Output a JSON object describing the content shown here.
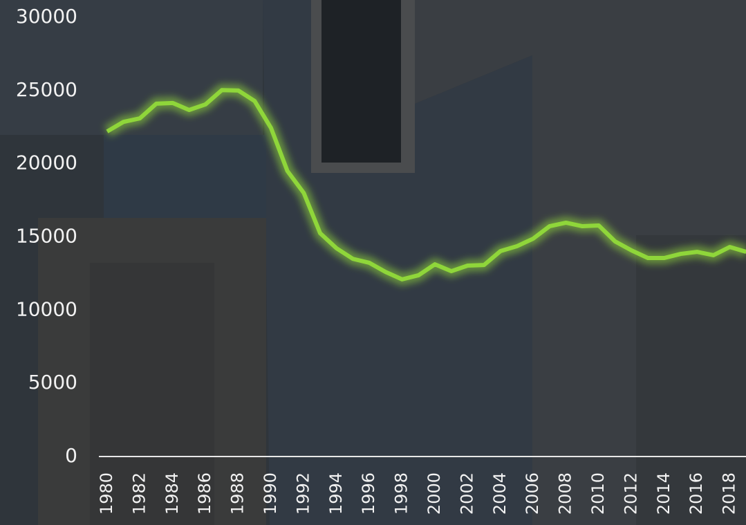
{
  "chart_data": {
    "type": "line",
    "categories": [
      "1980",
      null,
      "1982",
      null,
      "1984",
      null,
      "1986",
      null,
      "1988",
      null,
      "1990",
      null,
      "1992",
      null,
      "1994",
      null,
      "1996",
      null,
      "1998",
      null,
      "2000",
      null,
      "2002",
      null,
      "2004",
      null,
      "2006",
      null,
      "2008",
      null,
      "2010",
      null,
      "2012",
      null,
      "2014",
      null,
      "2016",
      null,
      "2018",
      null
    ],
    "series": [
      {
        "color": "#8fd63a",
        "values": [
          22200,
          22860,
          23100,
          24100,
          24150,
          23670,
          24050,
          25030,
          25000,
          24280,
          22440,
          19500,
          18000,
          15250,
          14220,
          13500,
          13230,
          12600,
          12100,
          12380,
          13130,
          12660,
          13040,
          13080,
          14030,
          14360,
          14880,
          15730,
          15970,
          15730,
          15780,
          14690,
          14080,
          13560,
          13560,
          13840,
          13980,
          13750,
          14310,
          13980
        ]
      }
    ],
    "ylim": [
      0,
      30000
    ],
    "yticks": [
      0,
      5000,
      10000,
      15000,
      20000,
      25000,
      30000
    ]
  }
}
